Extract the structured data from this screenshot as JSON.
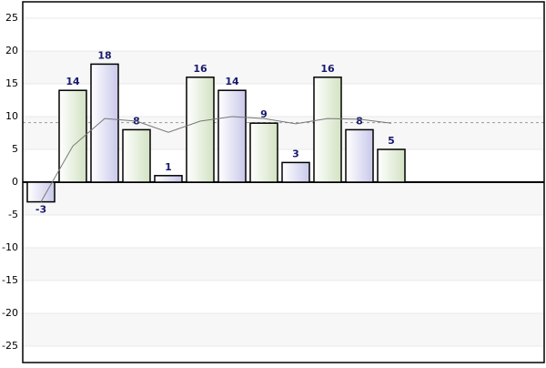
{
  "chart_data": {
    "type": "bar",
    "values": [
      -3,
      14,
      18,
      8,
      1,
      16,
      14,
      9,
      3,
      16,
      8,
      5
    ],
    "colors": [
      "#d6d6ee",
      "#dfe8d2"
    ],
    "trend": [
      -3,
      5.5,
      9.7,
      9.3,
      7.6,
      9.3,
      10,
      9.7,
      8.9,
      9.7,
      9.6,
      9
    ],
    "reference_line": 9.08,
    "ylim": [
      -27.5,
      27.5
    ],
    "yticks": [
      -25,
      -20,
      -15,
      -10,
      -5,
      0,
      5,
      10,
      15,
      20,
      25
    ],
    "grid": true
  }
}
